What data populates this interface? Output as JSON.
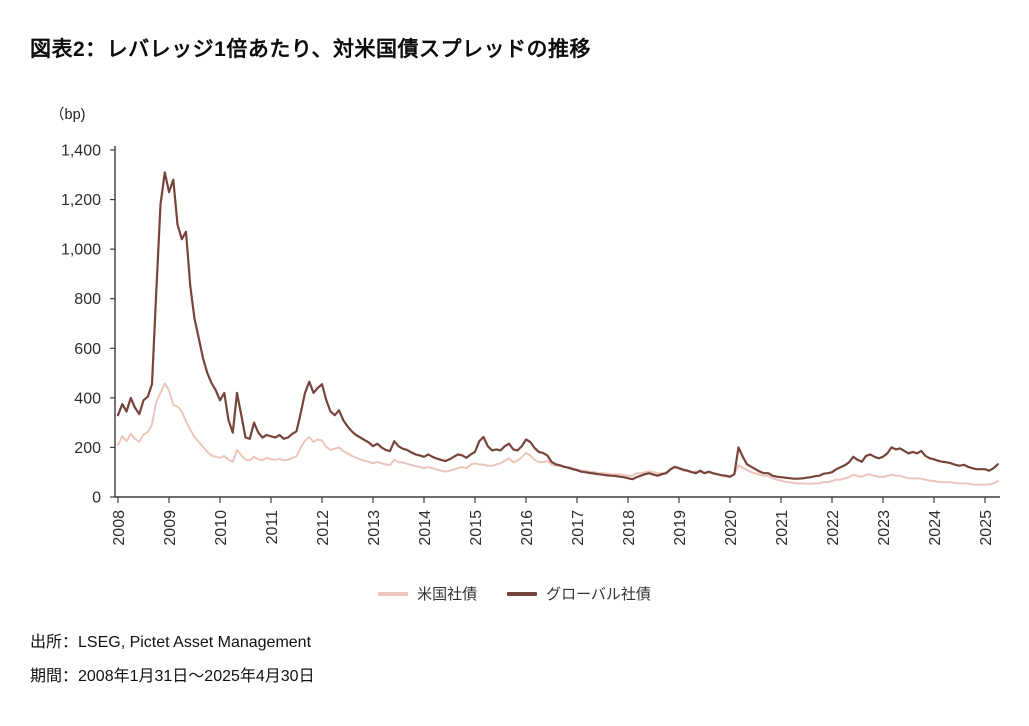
{
  "page": {
    "title": "図表2：レバレッジ1倍あたり、対米国債スプレッドの推移",
    "source_line": "出所：LSEG, Pictet Asset Management",
    "period_line": "期間：2008年1月31日～2025年4月30日"
  },
  "colors": {
    "us_bonds_line": "#ecc6bb",
    "global_bonds_line": "#77443b",
    "axis": "#3c3c3c",
    "tick_text": "#2e2e2e"
  },
  "chart_data": {
    "type": "line",
    "title": "図表2：レバレッジ1倍あたり、対米国債スプレッドの推移",
    "y_unit_label": "（bp)",
    "ylabel": "",
    "xlabel": "",
    "ylim": [
      0,
      1400
    ],
    "grid": false,
    "legend_position": "bottom",
    "y_ticks": [
      0,
      200,
      400,
      600,
      800,
      1000,
      1200,
      1400
    ],
    "y_tick_labels": [
      "0",
      "200",
      "400",
      "600",
      "800",
      "1,000",
      "1,200",
      "1,400"
    ],
    "x_tick_labels": [
      "2008",
      "2009",
      "2010",
      "2011",
      "2012",
      "2013",
      "2014",
      "2015",
      "2016",
      "2017",
      "2018",
      "2019",
      "2020",
      "2021",
      "2022",
      "2023",
      "2024",
      "2025"
    ],
    "x_start_month": "2008-01",
    "x_end_month": "2025-04",
    "x_interval": "monthly",
    "series": [
      {
        "name": "米国社債",
        "color": "#ecc6bb",
        "values": [
          210,
          245,
          225,
          255,
          235,
          222,
          252,
          262,
          292,
          385,
          420,
          458,
          430,
          372,
          365,
          345,
          305,
          272,
          242,
          222,
          202,
          182,
          168,
          162,
          158,
          165,
          150,
          142,
          190,
          168,
          150,
          148,
          162,
          152,
          148,
          158,
          152,
          150,
          154,
          148,
          150,
          158,
          164,
          200,
          228,
          242,
          222,
          232,
          228,
          202,
          190,
          195,
          200,
          185,
          176,
          166,
          158,
          152,
          146,
          142,
          136,
          142,
          136,
          131,
          129,
          150,
          140,
          139,
          134,
          129,
          125,
          121,
          116,
          121,
          116,
          111,
          106,
          102,
          106,
          111,
          116,
          121,
          116,
          131,
          136,
          131,
          131,
          126,
          126,
          131,
          136,
          146,
          156,
          141,
          146,
          161,
          178,
          168,
          150,
          141,
          141,
          146,
          131,
          126,
          126,
          121,
          121,
          116,
          111,
          106,
          106,
          101,
          101,
          96,
          96,
          95,
          91,
          91,
          91,
          90,
          86,
          86,
          96,
          96,
          100,
          104,
          100,
          96,
          96,
          100,
          110,
          119,
          114,
          106,
          104,
          100,
          104,
          100,
          96,
          100,
          95,
          91,
          86,
          81,
          80,
          90,
          128,
          118,
          108,
          100,
          95,
          90,
          86,
          85,
          76,
          70,
          66,
          61,
          60,
          56,
          55,
          55,
          54,
          54,
          55,
          55,
          60,
          60,
          64,
          70,
          70,
          75,
          80,
          90,
          85,
          81,
          90,
          91,
          85,
          81,
          81,
          85,
          90,
          86,
          85,
          80,
          76,
          75,
          75,
          74,
          70,
          66,
          65,
          61,
          60,
          60,
          60,
          56,
          55,
          55,
          54,
          51,
          50,
          50,
          50,
          51,
          55,
          64
        ]
      },
      {
        "name": "グローバル社債",
        "color": "#77443b",
        "values": [
          330,
          375,
          345,
          400,
          360,
          335,
          390,
          405,
          455,
          830,
          1180,
          1310,
          1230,
          1280,
          1100,
          1040,
          1070,
          850,
          720,
          640,
          560,
          500,
          460,
          430,
          390,
          420,
          310,
          260,
          420,
          330,
          240,
          235,
          300,
          260,
          240,
          250,
          245,
          240,
          250,
          235,
          240,
          255,
          265,
          340,
          420,
          465,
          420,
          440,
          455,
          390,
          345,
          330,
          350,
          310,
          285,
          265,
          250,
          240,
          230,
          220,
          205,
          215,
          200,
          190,
          185,
          225,
          205,
          195,
          190,
          180,
          172,
          168,
          162,
          172,
          162,
          155,
          150,
          145,
          152,
          162,
          172,
          168,
          158,
          172,
          182,
          225,
          242,
          205,
          188,
          192,
          188,
          205,
          215,
          192,
          188,
          205,
          232,
          222,
          198,
          182,
          178,
          168,
          142,
          132,
          128,
          122,
          118,
          112,
          108,
          102,
          100,
          97,
          95,
          92,
          90,
          87,
          86,
          85,
          82,
          80,
          76,
          72,
          80,
          86,
          92,
          96,
          90,
          86,
          92,
          96,
          112,
          122,
          116,
          110,
          106,
          100,
          96,
          106,
          96,
          102,
          96,
          92,
          88,
          86,
          82,
          92,
          200,
          162,
          132,
          122,
          112,
          102,
          96,
          96,
          86,
          82,
          80,
          78,
          76,
          74,
          74,
          75,
          78,
          80,
          84,
          86,
          94,
          96,
          100,
          112,
          120,
          128,
          140,
          162,
          150,
          142,
          166,
          172,
          162,
          156,
          162,
          176,
          200,
          192,
          196,
          186,
          176,
          182,
          176,
          186,
          166,
          156,
          152,
          146,
          142,
          140,
          136,
          130,
          126,
          130,
          122,
          116,
          112,
          112,
          112,
          106,
          116,
          132
        ]
      }
    ]
  }
}
